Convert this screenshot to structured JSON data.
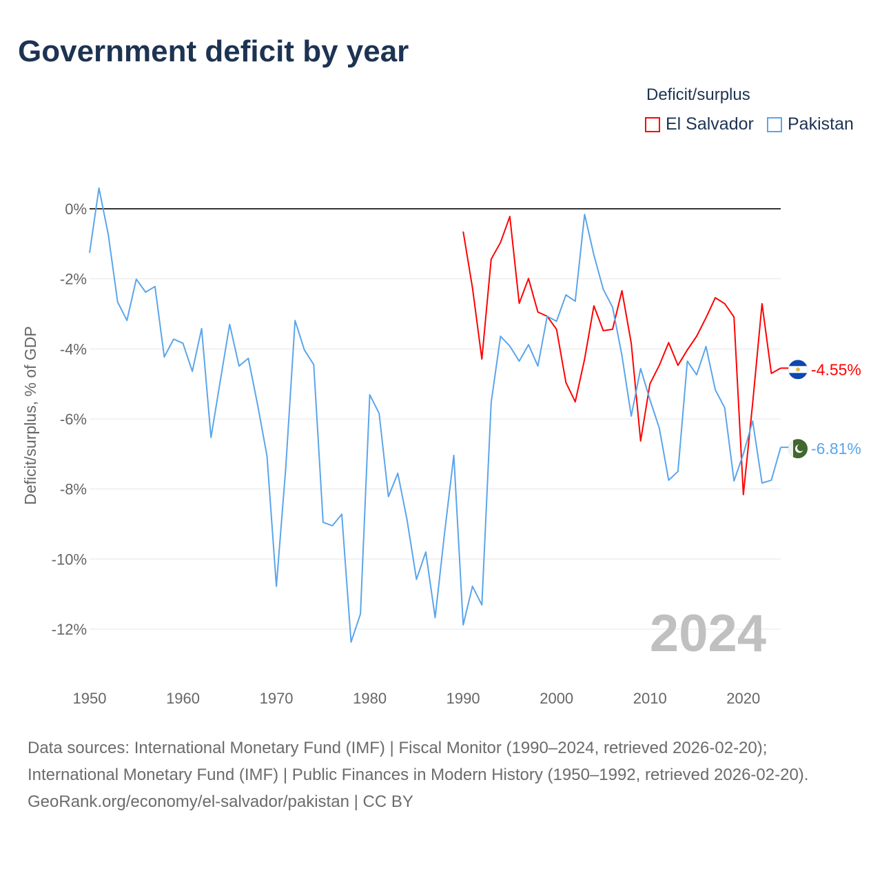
{
  "title": "Government deficit by year",
  "legend": {
    "title": "Deficit/surplus",
    "items": [
      {
        "label": "El Salvador",
        "color": "#ff0000"
      },
      {
        "label": "Pakistan",
        "color": "#5aa5ea"
      }
    ]
  },
  "current_year": "2024",
  "footer": {
    "source_line": "Data sources: International Monetary Fund (IMF) | Fiscal Monitor (1990–2024, retrieved 2026-02-20); International Monetary Fund (IMF) | Public Finances in Modern History (1950–1992, retrieved 2026-02-20).",
    "credit_line": "GeoRank.org/economy/el-salvador/pakistan | CC BY"
  },
  "chart_data": {
    "type": "line",
    "title": "Government deficit by year",
    "xlabel": "",
    "ylabel": "Deficit/surplus, % of GDP",
    "xlim": [
      1950,
      2024
    ],
    "ylim": [
      -13.2,
      0.9
    ],
    "xticks": [
      1950,
      1960,
      1970,
      1980,
      1990,
      2000,
      2010,
      2020
    ],
    "yticks": [
      0,
      -2,
      -4,
      -6,
      -8,
      -10,
      -12
    ],
    "ytick_labels": [
      "0%",
      "-2%",
      "-4%",
      "-6%",
      "-8%",
      "-10%",
      "-12%"
    ],
    "grid": true,
    "legend_position": "top-right",
    "series": [
      {
        "name": "El Salvador",
        "color": "#ff0000",
        "end_label": "-4.55%",
        "flag": "el-salvador-flag",
        "x": [
          1990,
          1991,
          1992,
          1993,
          1994,
          1995,
          1996,
          1997,
          1998,
          1999,
          2000,
          2001,
          2002,
          2003,
          2004,
          2005,
          2006,
          2007,
          2008,
          2009,
          2010,
          2011,
          2012,
          2013,
          2014,
          2015,
          2016,
          2017,
          2018,
          2019,
          2020,
          2021,
          2022,
          2023,
          2024
        ],
        "values": [
          -0.65,
          -2.26,
          -4.29,
          -1.44,
          -0.96,
          -0.22,
          -2.7,
          -1.99,
          -2.95,
          -3.07,
          -3.44,
          -4.96,
          -5.51,
          -4.29,
          -2.77,
          -3.48,
          -3.44,
          -2.34,
          -3.84,
          -6.63,
          -5.0,
          -4.47,
          -3.82,
          -4.47,
          -4.03,
          -3.64,
          -3.11,
          -2.54,
          -2.71,
          -3.09,
          -8.16,
          -5.55,
          -2.71,
          -4.7,
          -4.55
        ]
      },
      {
        "name": "Pakistan",
        "color": "#5aa5ea",
        "end_label": "-6.81%",
        "flag": "pakistan-flag",
        "x": [
          1950,
          1951,
          1952,
          1953,
          1954,
          1955,
          1956,
          1957,
          1958,
          1959,
          1960,
          1961,
          1962,
          1963,
          1964,
          1965,
          1966,
          1967,
          1968,
          1969,
          1970,
          1971,
          1972,
          1973,
          1974,
          1975,
          1976,
          1977,
          1978,
          1979,
          1980,
          1981,
          1982,
          1983,
          1984,
          1985,
          1986,
          1987,
          1988,
          1989,
          1990,
          1991,
          1992,
          1993,
          1994,
          1995,
          1996,
          1997,
          1998,
          1999,
          2000,
          2001,
          2002,
          2003,
          2004,
          2005,
          2006,
          2007,
          2008,
          2009,
          2010,
          2011,
          2012,
          2013,
          2014,
          2015,
          2016,
          2017,
          2018,
          2019,
          2020,
          2021,
          2022,
          2023,
          2024
        ],
        "values": [
          -1.26,
          0.59,
          -0.73,
          -2.66,
          -3.19,
          -2.01,
          -2.38,
          -2.22,
          -4.23,
          -3.72,
          -3.84,
          -4.64,
          -3.42,
          -6.53,
          -4.9,
          -3.3,
          -4.49,
          -4.27,
          -5.61,
          -7.06,
          -10.78,
          -7.42,
          -3.19,
          -4.03,
          -4.45,
          -8.95,
          -9.05,
          -8.72,
          -12.37,
          -11.57,
          -5.31,
          -5.84,
          -8.22,
          -7.55,
          -8.89,
          -10.58,
          -9.8,
          -11.67,
          -9.27,
          -7.04,
          -11.88,
          -10.78,
          -11.31,
          -5.53,
          -3.64,
          -3.92,
          -4.35,
          -3.88,
          -4.49,
          -3.07,
          -3.21,
          -2.46,
          -2.64,
          -0.16,
          -1.32,
          -2.3,
          -2.81,
          -4.19,
          -5.92,
          -4.56,
          -5.45,
          -6.26,
          -7.75,
          -7.5,
          -4.35,
          -4.74,
          -3.93,
          -5.17,
          -5.68,
          -7.77,
          -7.0,
          -6.06,
          -7.83,
          -7.75,
          -6.81
        ]
      }
    ]
  }
}
